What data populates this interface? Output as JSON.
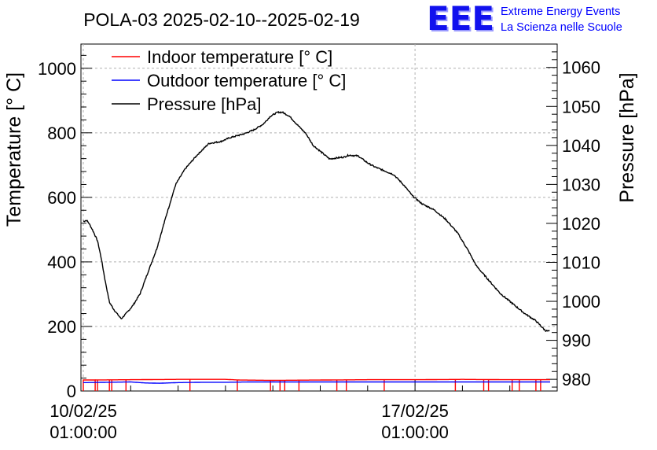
{
  "chart_data": {
    "type": "line",
    "title": "POLA-03 2025-02-10--2025-02-19",
    "ylabel_left": "Temperature [° C]",
    "ylabel_right": "Pressure [hPa]",
    "xlabel": "",
    "ylim_left": [
      0,
      1075
    ],
    "ylim_right": [
      977,
      1066
    ],
    "y_ticks_left": [
      0,
      200,
      400,
      600,
      800,
      1000
    ],
    "y_ticks_right": [
      980,
      990,
      1000,
      1010,
      1020,
      1030,
      1040,
      1050,
      1060
    ],
    "x_range_days": [
      -0.05,
      10.0
    ],
    "x_ticks": [
      {
        "day": 0,
        "date": "10/02/25",
        "time": "01:00:00"
      },
      {
        "day": 7,
        "date": "17/02/25",
        "time": "01:00:00"
      }
    ],
    "grid": true,
    "legend_position": "top-left",
    "legend": [
      {
        "label": "Indoor temperature [° C]",
        "color": "#ff0000"
      },
      {
        "label": "Outdoor temperature [° C]",
        "color": "#0000ff"
      },
      {
        "label": "Pressure [hPa]",
        "color": "#000000"
      }
    ],
    "series": [
      {
        "name": "Pressure [hPa]",
        "axis": "right",
        "color": "#000000",
        "x": [
          0.0,
          0.07,
          0.12,
          0.2,
          0.3,
          0.38,
          0.45,
          0.55,
          0.65,
          0.8,
          0.95,
          1.05,
          1.2,
          1.35,
          1.55,
          1.75,
          1.95,
          2.15,
          2.4,
          2.65,
          2.9,
          3.1,
          3.25,
          3.4,
          3.6,
          3.8,
          3.95,
          4.1,
          4.2,
          4.35,
          4.5,
          4.7,
          4.85,
          5.0,
          5.2,
          5.35,
          5.5,
          5.6,
          5.8,
          6.0,
          6.15,
          6.35,
          6.55,
          6.75,
          6.95,
          7.15,
          7.4,
          7.65,
          7.9,
          8.1,
          8.3,
          8.55,
          8.8,
          9.05,
          9.3,
          9.55,
          9.75,
          9.85
        ],
        "values": [
          1020.5,
          1020.8,
          1020.0,
          1018.2,
          1015.5,
          1011.0,
          1006.0,
          999.8,
          997.8,
          995.5,
          997.5,
          999.0,
          1002.0,
          1007.0,
          1013.5,
          1022.0,
          1030.0,
          1034.0,
          1037.5,
          1040.5,
          1041.0,
          1042.0,
          1042.5,
          1043.0,
          1044.0,
          1045.5,
          1047.5,
          1048.5,
          1048.5,
          1047.5,
          1045.5,
          1043.0,
          1040.0,
          1038.5,
          1036.5,
          1036.8,
          1037.0,
          1037.5,
          1037.3,
          1035.5,
          1034.5,
          1033.5,
          1032.5,
          1030.0,
          1027.0,
          1025.0,
          1023.5,
          1021.0,
          1017.5,
          1013.5,
          1009.0,
          1005.5,
          1002.0,
          999.5,
          997.0,
          995.0,
          992.5,
          992.3
        ]
      },
      {
        "name": "Indoor temperature [° C]",
        "axis": "left",
        "color": "#ff0000",
        "x": [
          0.0,
          1.0,
          2.0,
          3.0,
          3.3,
          4.0,
          5.0,
          6.0,
          7.0,
          8.0,
          9.0,
          9.85
        ],
        "values": [
          34,
          35,
          36,
          36,
          34,
          33,
          34,
          35,
          35,
          36,
          35,
          35
        ],
        "dips_to_zero_at_days": [
          0.0,
          0.25,
          0.3,
          0.55,
          0.6,
          0.9,
          2.25,
          3.25,
          3.95,
          4.15,
          4.25,
          4.55,
          5.35,
          5.55,
          6.35,
          7.85,
          8.45,
          8.55,
          9.05,
          9.2,
          9.55,
          9.65
        ]
      },
      {
        "name": "Outdoor temperature [° C]",
        "axis": "left",
        "color": "#0000ff",
        "x": [
          0.0,
          0.5,
          1.0,
          1.3,
          1.6,
          2.0,
          2.5,
          3.0,
          3.5,
          4.0,
          5.0,
          6.0,
          7.0,
          8.0,
          9.0,
          9.85
        ],
        "values": [
          26,
          27,
          28,
          25,
          24,
          26,
          27,
          27,
          28,
          28,
          28,
          28,
          28,
          28,
          28,
          28
        ]
      }
    ]
  },
  "brand": {
    "logo": "EEE",
    "line1": "Extreme Energy Events",
    "line2": "La Scienza nelle Scuole"
  }
}
